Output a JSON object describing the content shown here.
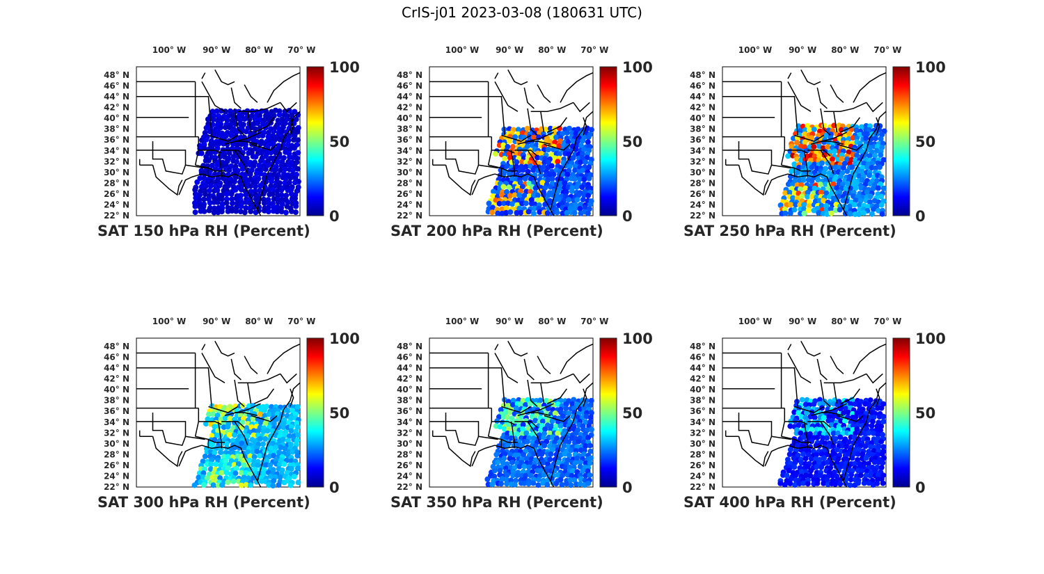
{
  "figure": {
    "title": "CrIS-j01 2023-03-08 (180631 UTC)"
  },
  "map": {
    "lon_ticks": [
      "100° W",
      "90° W",
      "80° W",
      "70° W"
    ],
    "lat_ticks": [
      "48° N",
      "46° N",
      "44° N",
      "42° N",
      "40° N",
      "38° N",
      "36° N",
      "34° N",
      "32° N",
      "30° N",
      "28° N",
      "26° N",
      "24° N",
      "22° N"
    ],
    "colorbar": {
      "min_label": "0",
      "mid_label": "50",
      "max_label": "100",
      "colormap": "jet",
      "colors": [
        "#00008f",
        "#0000ff",
        "#0080ff",
        "#00ffff",
        "#80ff80",
        "#ffff00",
        "#ff8000",
        "#ff0000",
        "#800000"
      ]
    },
    "land_fill": "#ffffff",
    "border_color": "#000000"
  },
  "panels": [
    {
      "label": "SAT 150 hPa RH (Percent)",
      "level_hpa": 150,
      "moisture": "very-dry"
    },
    {
      "label": "SAT 200 hPa RH (Percent)",
      "level_hpa": 200,
      "moisture": "moist-band"
    },
    {
      "label": "SAT 250 hPa RH (Percent)",
      "level_hpa": 250,
      "moisture": "very-moist-band"
    },
    {
      "label": "SAT 300 hPa RH (Percent)",
      "level_hpa": 300,
      "moisture": "moderate"
    },
    {
      "label": "SAT 350 hPa RH (Percent)",
      "level_hpa": 350,
      "moisture": "moderate-dry"
    },
    {
      "label": "SAT 400 hPa RH (Percent)",
      "level_hpa": 400,
      "moisture": "dry"
    }
  ]
}
